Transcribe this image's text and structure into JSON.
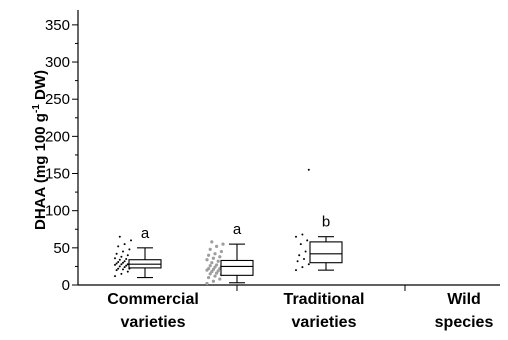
{
  "chart_data": {
    "type": "box",
    "title": "",
    "ylabel": {
      "prefix": "DHAA (mg 100 g",
      "sup": "-1",
      "suffix": " DW)"
    },
    "ylim": [
      0,
      370
    ],
    "yticks": [
      0,
      50,
      100,
      150,
      200,
      250,
      300,
      350
    ],
    "grid": false,
    "categories": [
      {
        "line1": "Commercial",
        "line2": "varieties"
      },
      {
        "line1": "Traditional",
        "line2": "varieties"
      },
      {
        "line1": "Wild",
        "line2": "species"
      }
    ],
    "boxes": [
      {
        "min": 10,
        "q1": 23,
        "median": 28,
        "q3": 34,
        "max": 50,
        "letter": "a"
      },
      {
        "min": 3,
        "q1": 13,
        "median": 25,
        "q3": 33,
        "max": 55,
        "letter": "a"
      },
      {
        "min": 20,
        "q1": 30,
        "median": 42,
        "q3": 58,
        "max": 65,
        "letter": "b"
      }
    ],
    "points_color": [
      "#000000",
      "#9e9e9e",
      "#000000"
    ],
    "points": [
      [
        12,
        15,
        18,
        20,
        21,
        22,
        22,
        24,
        25,
        25,
        26,
        27,
        28,
        28,
        29,
        30,
        30,
        31,
        32,
        33,
        34,
        35,
        36,
        38,
        40,
        42,
        45,
        48,
        52,
        55,
        60,
        65
      ],
      [
        2,
        5,
        8,
        10,
        12,
        14,
        15,
        16,
        17,
        18,
        19,
        20,
        21,
        22,
        22,
        24,
        25,
        26,
        27,
        28,
        30,
        32,
        34,
        36,
        38,
        40,
        42,
        45,
        48,
        52,
        55,
        58
      ],
      [
        20,
        24,
        28,
        32,
        35,
        38,
        40,
        45,
        50,
        55,
        60,
        65,
        68,
        155
      ]
    ]
  }
}
